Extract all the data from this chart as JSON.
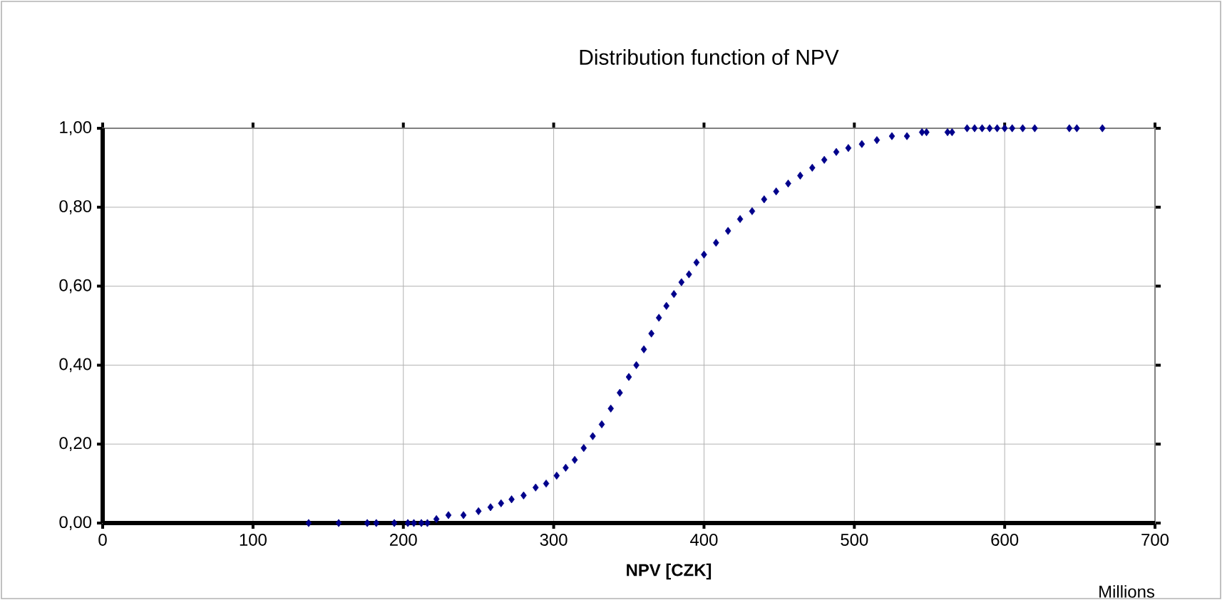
{
  "chart_data": {
    "type": "scatter",
    "title": "Distribution function of NPV",
    "xlabel": "NPV [CZK]",
    "annotations": [
      "Millions"
    ],
    "x": [
      137,
      157,
      176,
      182,
      194,
      203,
      207,
      212,
      216,
      222,
      230,
      240,
      250,
      258,
      265,
      272,
      280,
      288,
      295,
      302,
      308,
      314,
      320,
      326,
      332,
      338,
      344,
      350,
      355,
      360,
      365,
      370,
      375,
      380,
      385,
      390,
      395,
      400,
      408,
      416,
      424,
      432,
      440,
      448,
      456,
      464,
      472,
      480,
      488,
      496,
      505,
      515,
      525,
      535,
      545,
      548,
      562,
      565,
      575,
      580,
      585,
      590,
      595,
      600,
      605,
      612,
      620,
      643,
      648,
      665
    ],
    "series": [
      {
        "color": "#00008b",
        "values": [
          0,
          0,
          0,
          0,
          0,
          0,
          0,
          0,
          0,
          0.01,
          0.02,
          0.02,
          0.03,
          0.04,
          0.05,
          0.06,
          0.07,
          0.09,
          0.1,
          0.12,
          0.14,
          0.16,
          0.19,
          0.22,
          0.25,
          0.29,
          0.33,
          0.37,
          0.4,
          0.44,
          0.48,
          0.52,
          0.55,
          0.58,
          0.61,
          0.63,
          0.66,
          0.68,
          0.71,
          0.74,
          0.77,
          0.79,
          0.82,
          0.84,
          0.86,
          0.88,
          0.9,
          0.92,
          0.94,
          0.95,
          0.96,
          0.97,
          0.98,
          0.98,
          0.99,
          0.99,
          0.99,
          0.99,
          1,
          1,
          1,
          1,
          1,
          1,
          1,
          1,
          1,
          1,
          1,
          1
        ]
      }
    ],
    "xlim": [
      0,
      700
    ],
    "xticks": [
      0,
      100,
      200,
      300,
      400,
      500,
      600,
      700
    ],
    "ylim": [
      0,
      1
    ],
    "yticks": [
      {
        "value": 0,
        "label": "0,00"
      },
      {
        "value": 0.2,
        "label": "0,20"
      },
      {
        "value": 0.4,
        "label": "0,40"
      },
      {
        "value": 0.6,
        "label": "0,60"
      },
      {
        "value": 0.8,
        "label": "0,80"
      },
      {
        "value": 1,
        "label": "1,00"
      }
    ],
    "grid": true,
    "marker": "diamond"
  }
}
